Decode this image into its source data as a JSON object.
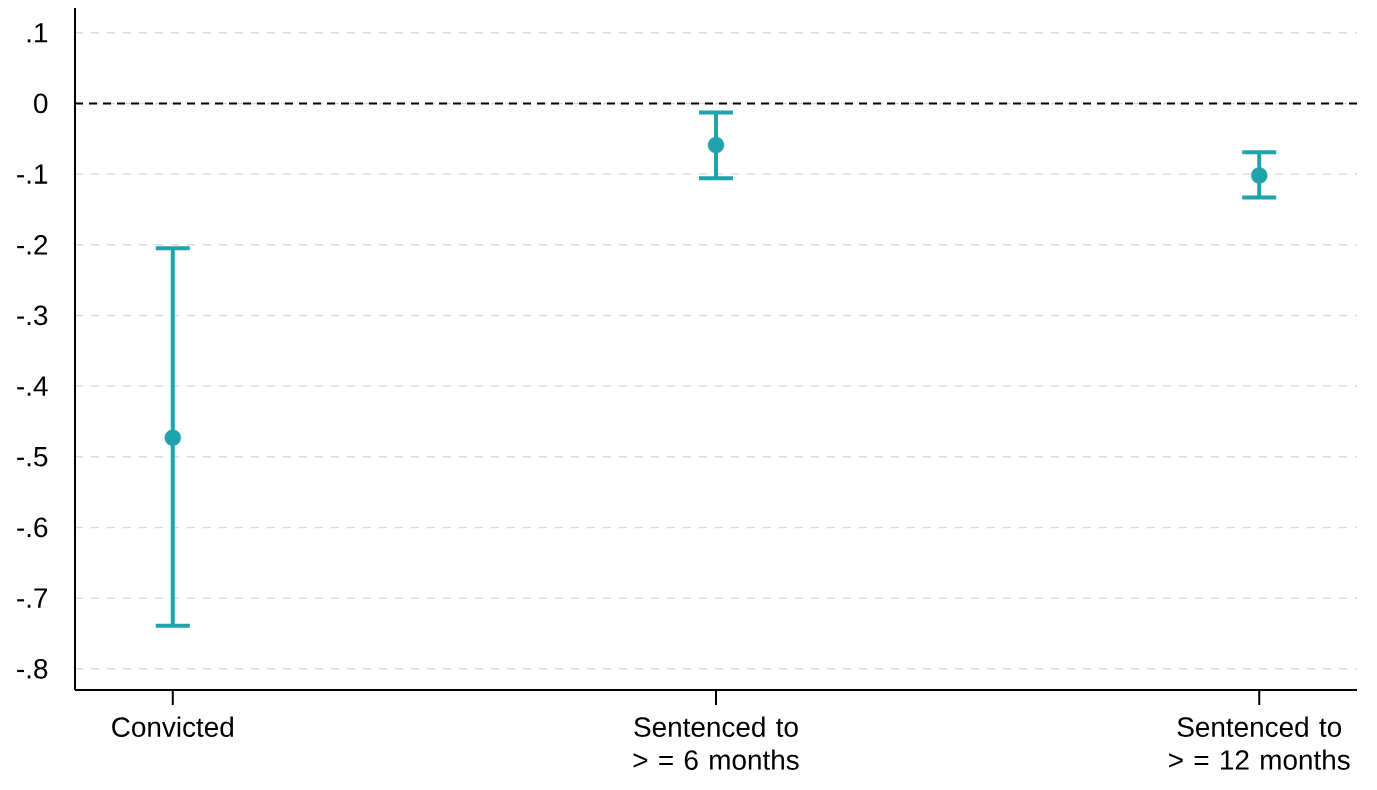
{
  "chart_data": {
    "type": "scatter",
    "categories": [
      "Convicted",
      "Sentenced to > = 6 months",
      "Sentenced to > = 12 months"
    ],
    "series": [
      {
        "color": "#1fa3ad",
        "values": [
          -0.473,
          -0.059,
          -0.102
        ],
        "errors": [
          [
            -0.739,
            -0.205
          ],
          [
            -0.106,
            -0.013
          ],
          [
            -0.133,
            -0.069
          ]
        ]
      }
    ],
    "ylim": [
      -0.83,
      0.135
    ],
    "yticks": [
      {
        "value": 0.1,
        "label": ".1"
      },
      {
        "value": 0,
        "label": "0"
      },
      {
        "value": -0.1,
        "label": "-.1"
      },
      {
        "value": -0.2,
        "label": "-.2"
      },
      {
        "value": -0.3,
        "label": "-.3"
      },
      {
        "value": -0.4,
        "label": "-.4"
      },
      {
        "value": -0.5,
        "label": "-.5"
      },
      {
        "value": -0.6,
        "label": "-.6"
      },
      {
        "value": -0.7,
        "label": "-.7"
      },
      {
        "value": -0.8,
        "label": "-.8"
      }
    ],
    "ref_lines": [
      {
        "axis": "y",
        "value": 0,
        "color": "#000000",
        "line_style": "dashed"
      }
    ],
    "grid": "y",
    "marker": "circle"
  }
}
